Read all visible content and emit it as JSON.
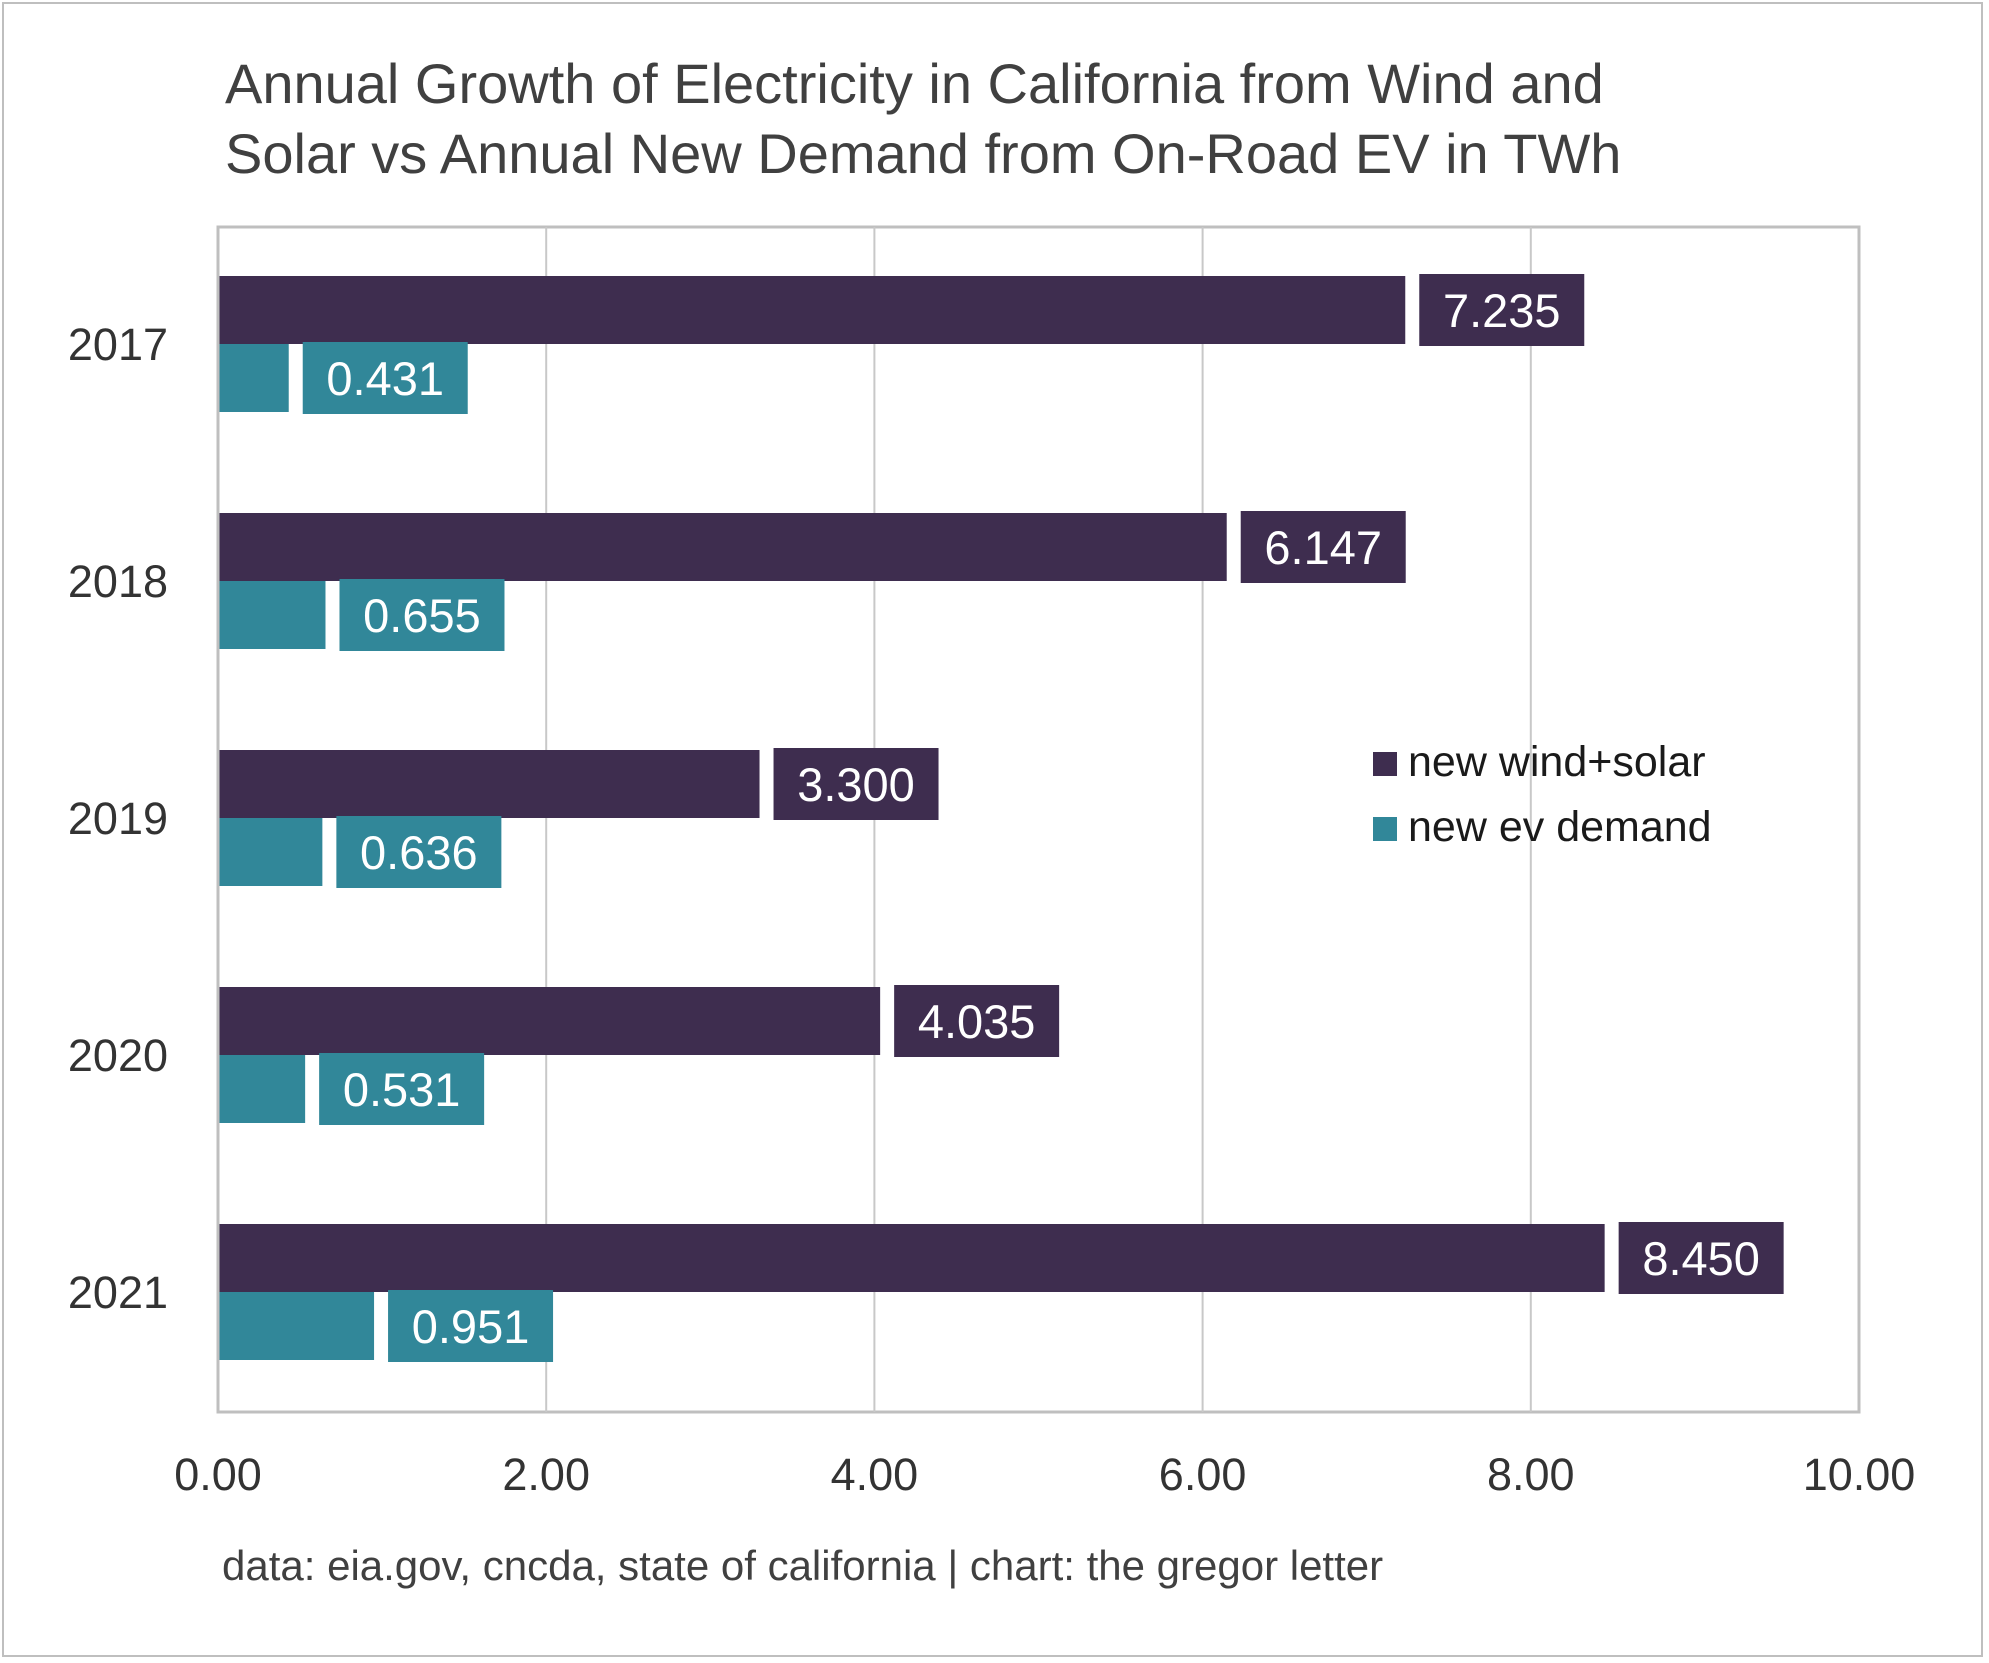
{
  "chart_data": {
    "type": "bar",
    "orientation": "horizontal",
    "title_lines": [
      "Annual Growth of Electricity in California from Wind and",
      "Solar vs Annual New Demand from On-Road EV in TWh"
    ],
    "categories": [
      "2017",
      "2018",
      "2019",
      "2020",
      "2021"
    ],
    "series": [
      {
        "name": "new wind+solar",
        "color": "#3e2d4f",
        "values": [
          7.235,
          6.147,
          3.3,
          4.035,
          8.45
        ],
        "labels": [
          "7.235",
          "6.147",
          "3.300",
          "4.035",
          "8.450"
        ]
      },
      {
        "name": "new ev demand",
        "color": "#318799",
        "values": [
          0.431,
          0.655,
          0.636,
          0.531,
          0.951
        ],
        "labels": [
          "0.431",
          "0.655",
          "0.636",
          "0.531",
          "0.951"
        ]
      }
    ],
    "xlim": [
      0,
      10
    ],
    "x_ticks": [
      0,
      2,
      4,
      6,
      8,
      10
    ],
    "x_tick_labels": [
      "0.00",
      "2.00",
      "4.00",
      "6.00",
      "8.00",
      "10.00"
    ],
    "grid": "vertical",
    "legend_position": "right-middle",
    "source_note": "data: eia.gov, cncda, state of california | chart: the gregor letter"
  }
}
